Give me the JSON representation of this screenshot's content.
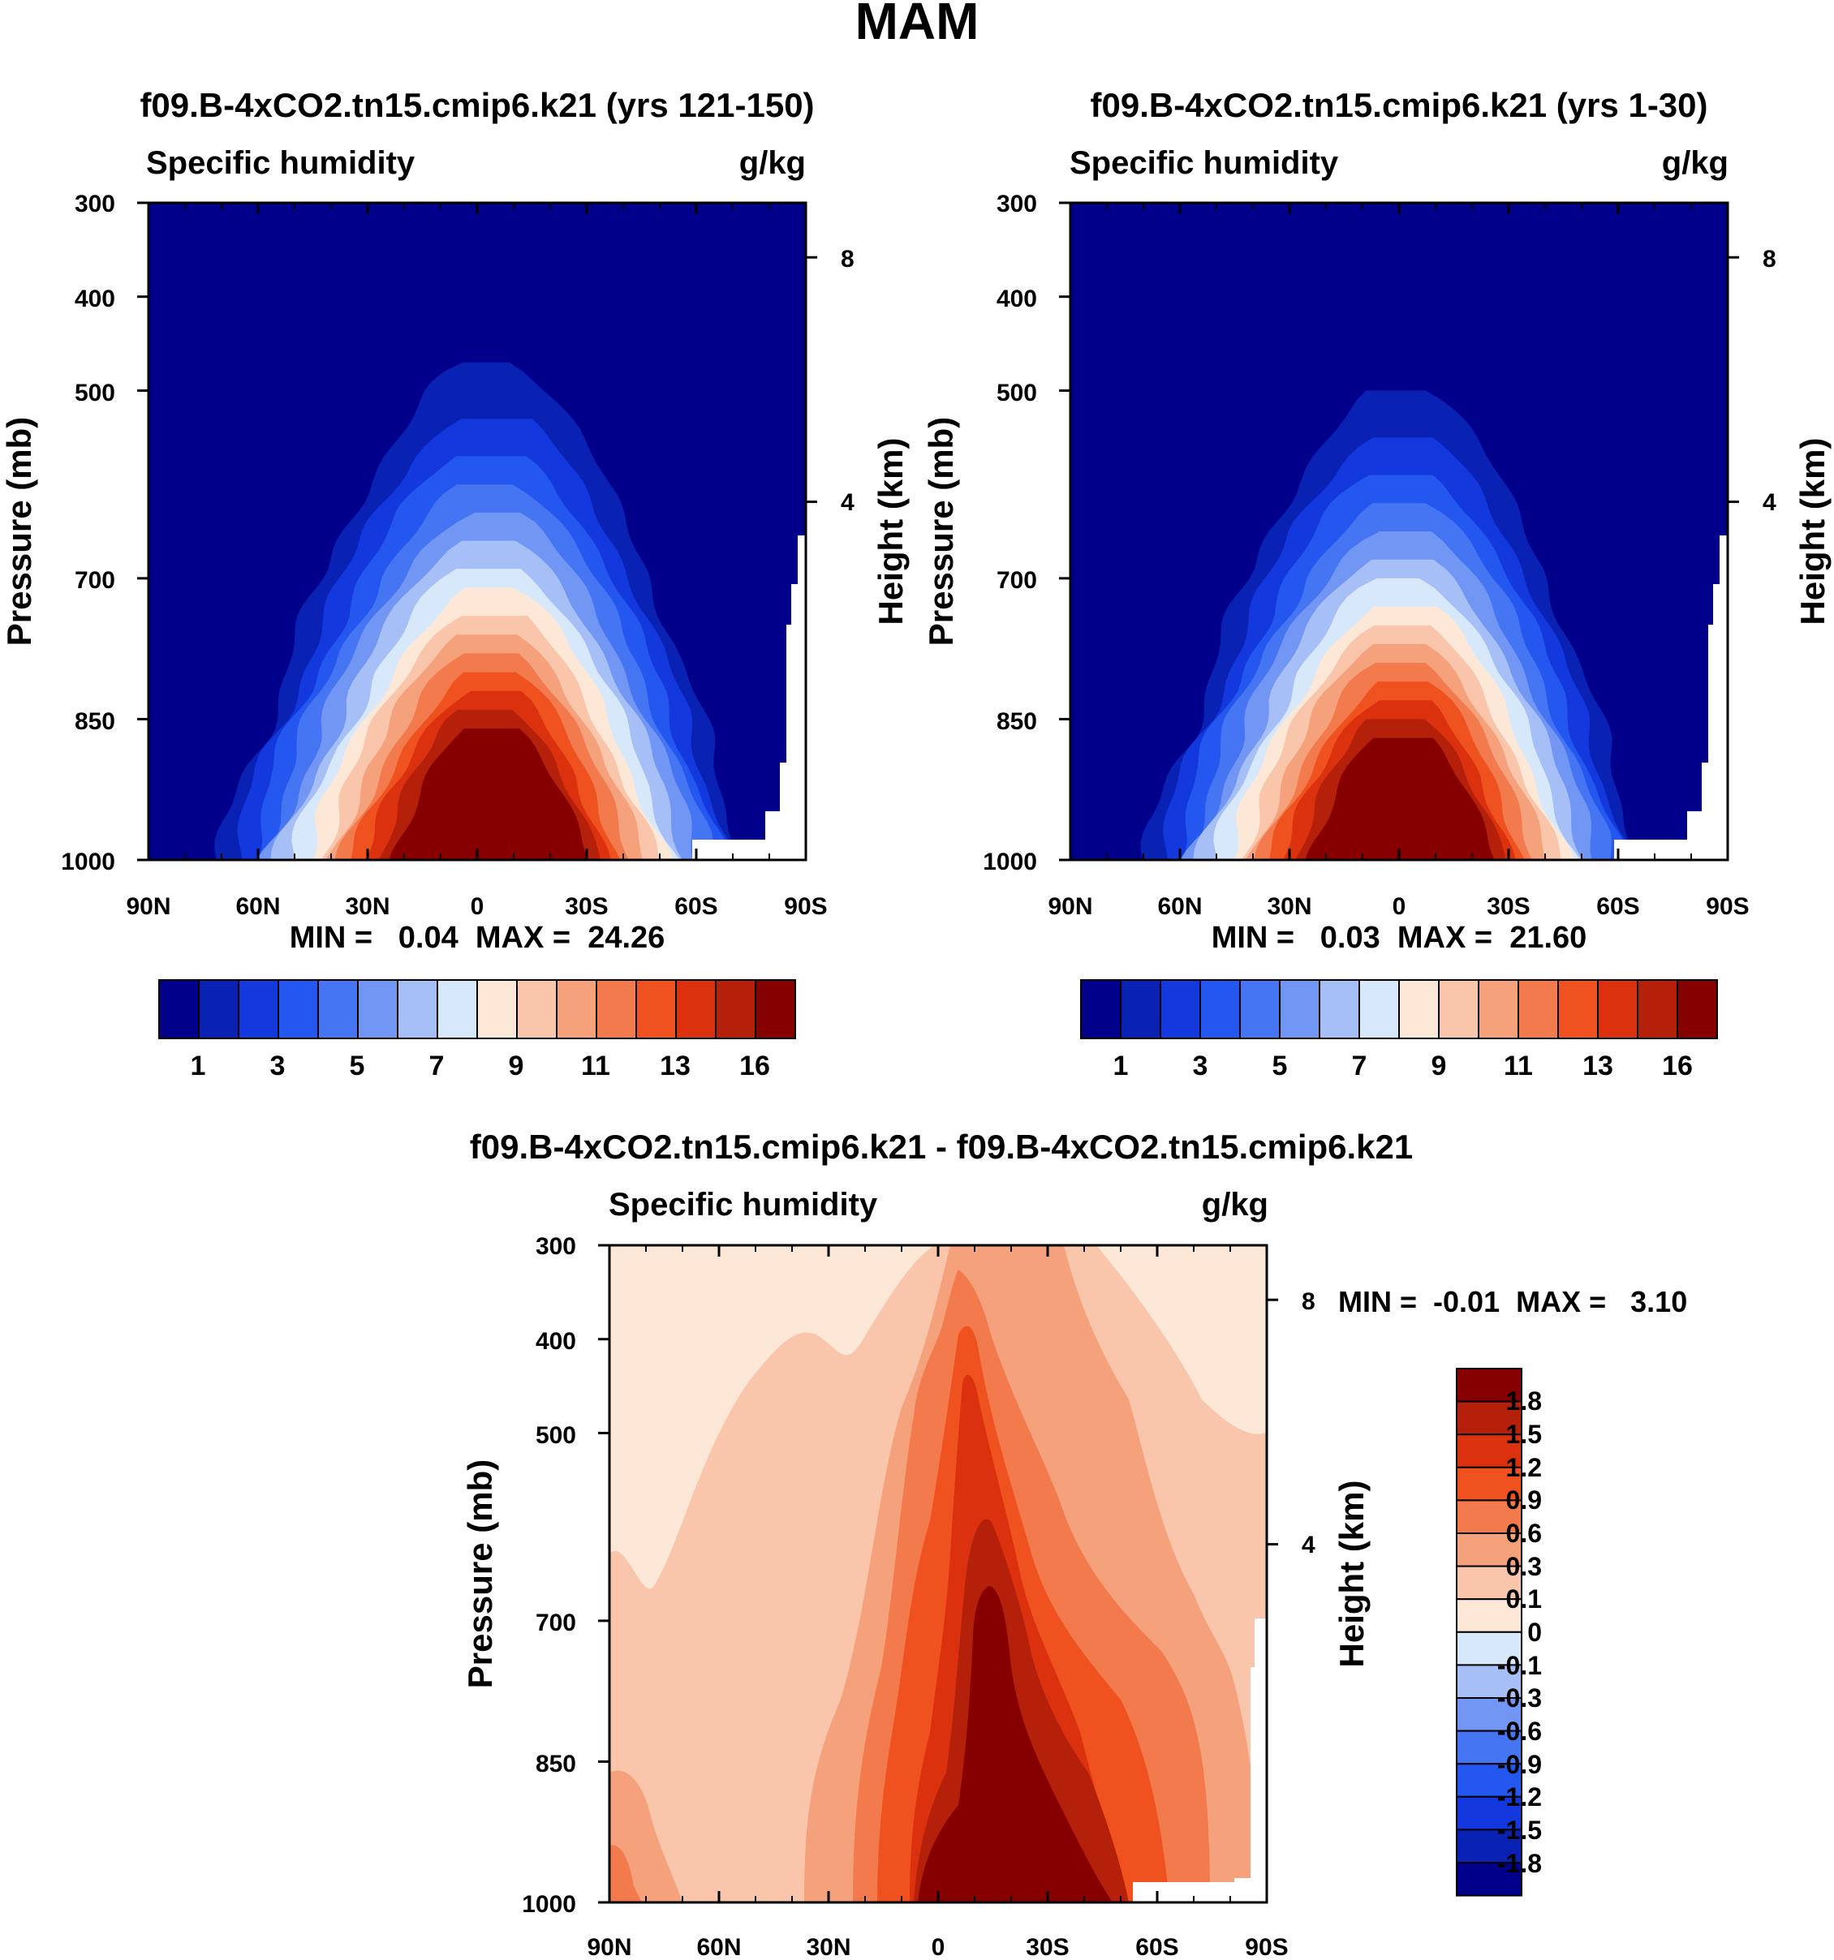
{
  "figure_title": "MAM",
  "chart_data": [
    {
      "type": "filled-contour",
      "title": "f09.B-4xCO2.tn15.cmip6.k21 (yrs 121-150)",
      "left_label": "Specific humidity",
      "right_label": "g/kg",
      "ylabel": "Pressure (mb)",
      "y2label": "Height (km)",
      "x_tick_labels": [
        "90N",
        "60N",
        "30N",
        "0",
        "30S",
        "60S",
        "90S"
      ],
      "x_ticks_deg": [
        90,
        60,
        30,
        0,
        -30,
        -60,
        -90
      ],
      "xlim": [
        90,
        -90
      ],
      "y_tick_labels": [
        "300",
        "400",
        "500",
        "700",
        "850",
        "1000"
      ],
      "y_ticks_mb": [
        300,
        400,
        500,
        700,
        850,
        1000
      ],
      "ylim": [
        1000,
        300
      ],
      "y2_tick_labels": [
        "8",
        "4"
      ],
      "y2_ticks_km": [
        8,
        4
      ],
      "min_label": "MIN =",
      "min_value": "0.04",
      "max_label": "MAX =",
      "max_value": "24.26",
      "colorbar_levels": [
        1,
        2,
        3,
        4,
        5,
        6,
        7,
        8,
        9,
        10,
        11,
        12,
        13,
        14,
        16
      ],
      "colorbar_tick_labels": [
        "1",
        "3",
        "5",
        "7",
        "9",
        "11",
        "13",
        "16"
      ],
      "peak_value": 24.26,
      "peak_lat": -5
    },
    {
      "type": "filled-contour",
      "title": "f09.B-4xCO2.tn15.cmip6.k21 (yrs 1-30)",
      "left_label": "Specific humidity",
      "right_label": "g/kg",
      "ylabel": "Pressure (mb)",
      "y2label": "Height (km)",
      "x_tick_labels": [
        "90N",
        "60N",
        "30N",
        "0",
        "30S",
        "60S",
        "90S"
      ],
      "x_ticks_deg": [
        90,
        60,
        30,
        0,
        -30,
        -60,
        -90
      ],
      "xlim": [
        90,
        -90
      ],
      "y_tick_labels": [
        "300",
        "400",
        "500",
        "700",
        "850",
        "1000"
      ],
      "y_ticks_mb": [
        300,
        400,
        500,
        700,
        850,
        1000
      ],
      "ylim": [
        1000,
        300
      ],
      "y2_tick_labels": [
        "8",
        "4"
      ],
      "y2_ticks_km": [
        8,
        4
      ],
      "min_label": "MIN =",
      "min_value": "0.03",
      "max_label": "MAX =",
      "max_value": "21.60",
      "colorbar_levels": [
        1,
        2,
        3,
        4,
        5,
        6,
        7,
        8,
        9,
        10,
        11,
        12,
        13,
        14,
        16
      ],
      "colorbar_tick_labels": [
        "1",
        "3",
        "5",
        "7",
        "9",
        "11",
        "13",
        "16"
      ],
      "peak_value": 21.6,
      "peak_lat": -2
    },
    {
      "type": "filled-contour",
      "title": "f09.B-4xCO2.tn15.cmip6.k21 - f09.B-4xCO2.tn15.cmip6.k21",
      "left_label": "Specific humidity",
      "right_label": "g/kg",
      "ylabel": "Pressure (mb)",
      "y2label": "Height (km)",
      "x_tick_labels": [
        "90N",
        "60N",
        "30N",
        "0",
        "30S",
        "60S",
        "90S"
      ],
      "x_ticks_deg": [
        90,
        60,
        30,
        0,
        -30,
        -60,
        -90
      ],
      "xlim": [
        90,
        -90
      ],
      "y_tick_labels": [
        "300",
        "400",
        "500",
        "700",
        "850",
        "1000"
      ],
      "y_ticks_mb": [
        300,
        400,
        500,
        700,
        850,
        1000
      ],
      "ylim": [
        1000,
        300
      ],
      "y2_tick_labels": [
        "8",
        "4"
      ],
      "y2_ticks_km": [
        8,
        4
      ],
      "min_label": "MIN =",
      "min_value": "-0.01",
      "max_label": "MAX =",
      "max_value": "3.10",
      "colorbar_levels": [
        1.8,
        1.5,
        1.2,
        0.9,
        0.6,
        0.3,
        0.1,
        0,
        -0.1,
        -0.3,
        -0.6,
        -0.9,
        -1.2,
        -1.5,
        -1.8
      ],
      "colorbar_tick_labels": [
        "1.8",
        "1.5",
        "1.2",
        "0.9",
        "0.6",
        "0.3",
        "0.1",
        "0",
        "-0.1",
        "-0.3",
        "-0.6",
        "-0.9",
        "-1.2",
        "-1.5",
        "-1.8"
      ],
      "peak_value": 3.1,
      "peak_lat": -12
    }
  ],
  "colors": {
    "palette": [
      "#00008b",
      "#0a22b4",
      "#1238de",
      "#2457f0",
      "#4575f2",
      "#7196f4",
      "#a6c0f7",
      "#d8e8fb",
      "#fde8d8",
      "#f9c6ac",
      "#f5a17b",
      "#f27a4d",
      "#f0521f",
      "#db310f",
      "#b4200a",
      "#870000"
    ],
    "no_data": "#ffffff"
  }
}
